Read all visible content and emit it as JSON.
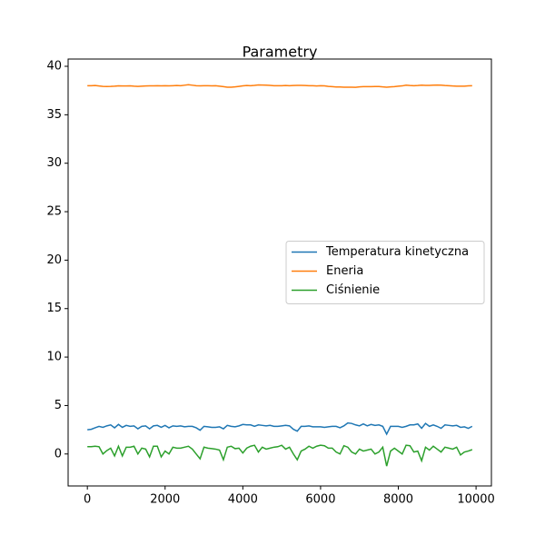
{
  "chart_data": {
    "type": "line",
    "title": "Parametry",
    "x": [
      0,
      100,
      200,
      300,
      400,
      500,
      600,
      700,
      800,
      900,
      1000,
      1100,
      1200,
      1300,
      1400,
      1500,
      1600,
      1700,
      1800,
      1900,
      2000,
      2100,
      2200,
      2300,
      2400,
      2500,
      2600,
      2700,
      2800,
      2900,
      3000,
      3100,
      3200,
      3300,
      3400,
      3500,
      3600,
      3700,
      3800,
      3900,
      4000,
      4100,
      4200,
      4300,
      4400,
      4500,
      4600,
      4700,
      4800,
      4900,
      5000,
      5100,
      5200,
      5300,
      5400,
      5500,
      5600,
      5700,
      5800,
      5900,
      6000,
      6100,
      6200,
      6300,
      6400,
      6500,
      6600,
      6700,
      6800,
      6900,
      7000,
      7100,
      7200,
      7300,
      7400,
      7500,
      7600,
      7700,
      7800,
      7900,
      8000,
      8100,
      8200,
      8300,
      8400,
      8500,
      8600,
      8700,
      8800,
      8900,
      9000,
      9100,
      9200,
      9300,
      9400,
      9500,
      9600,
      9700,
      9800,
      9900
    ],
    "series": [
      {
        "name": "Temperatura kinetyczna",
        "color": "#1f77b4",
        "values": [
          2.5,
          2.55,
          2.7,
          2.85,
          2.75,
          2.9,
          3.0,
          2.7,
          3.05,
          2.75,
          2.95,
          2.85,
          2.9,
          2.6,
          2.85,
          2.9,
          2.6,
          2.9,
          2.95,
          2.75,
          2.95,
          2.7,
          2.9,
          2.85,
          2.9,
          2.8,
          2.85,
          2.85,
          2.7,
          2.45,
          2.85,
          2.8,
          2.75,
          2.75,
          2.8,
          2.6,
          2.95,
          2.85,
          2.8,
          2.9,
          3.05,
          3.0,
          3.0,
          2.85,
          3.0,
          2.95,
          2.9,
          2.95,
          2.85,
          2.85,
          2.9,
          2.95,
          2.9,
          2.55,
          2.35,
          2.85,
          2.85,
          2.9,
          2.8,
          2.8,
          2.8,
          2.75,
          2.8,
          2.85,
          2.85,
          2.7,
          2.9,
          3.2,
          3.15,
          3.0,
          2.9,
          3.1,
          2.9,
          3.05,
          2.95,
          3.0,
          2.85,
          2.05,
          2.85,
          2.85,
          2.85,
          2.75,
          2.85,
          3.0,
          3.0,
          3.1,
          2.65,
          3.15,
          2.85,
          3.0,
          2.85,
          2.65,
          3.0,
          2.95,
          2.9,
          2.95,
          2.75,
          2.8,
          2.65,
          2.85
        ]
      },
      {
        "name": "Eneria",
        "color": "#ff7f0e",
        "values": [
          38.0,
          38.0,
          38.02,
          37.97,
          37.93,
          37.92,
          37.93,
          37.95,
          37.98,
          37.97,
          37.97,
          37.98,
          37.95,
          37.93,
          37.95,
          37.97,
          37.98,
          37.98,
          38.0,
          37.98,
          38.0,
          37.98,
          38.0,
          38.02,
          38.0,
          38.05,
          38.1,
          38.05,
          38.0,
          37.98,
          38.0,
          38.0,
          37.98,
          38.0,
          37.95,
          37.9,
          37.85,
          37.85,
          37.88,
          37.93,
          37.98,
          38.02,
          38.0,
          38.03,
          38.08,
          38.07,
          38.05,
          38.03,
          38.0,
          38.0,
          38.0,
          38.02,
          38.0,
          38.02,
          38.03,
          38.03,
          38.02,
          38.0,
          38.0,
          37.97,
          38.0,
          37.98,
          37.93,
          37.9,
          37.87,
          37.87,
          37.85,
          37.85,
          37.85,
          37.83,
          37.88,
          37.9,
          37.9,
          37.9,
          37.92,
          37.92,
          37.88,
          37.85,
          37.88,
          37.9,
          37.95,
          37.98,
          38.05,
          38.02,
          38.0,
          38.02,
          38.05,
          38.03,
          38.03,
          38.05,
          38.07,
          38.05,
          38.02,
          38.0,
          37.97,
          37.95,
          37.95,
          37.95,
          37.98,
          38.0
        ]
      },
      {
        "name": "Ciśnienie",
        "color": "#2ca02c",
        "values": [
          0.75,
          0.75,
          0.8,
          0.75,
          0.0,
          0.35,
          0.6,
          -0.2,
          0.8,
          -0.2,
          0.7,
          0.7,
          0.8,
          0.0,
          0.6,
          0.5,
          -0.3,
          0.8,
          0.8,
          -0.3,
          0.3,
          0.0,
          0.7,
          0.6,
          0.6,
          0.7,
          0.8,
          0.5,
          0.0,
          -0.5,
          0.7,
          0.6,
          0.55,
          0.5,
          0.4,
          -0.6,
          0.7,
          0.8,
          0.55,
          0.6,
          0.1,
          0.6,
          0.8,
          0.9,
          0.2,
          0.7,
          0.5,
          0.6,
          0.7,
          0.75,
          0.9,
          0.5,
          0.7,
          0.0,
          -0.6,
          0.3,
          0.5,
          0.8,
          0.6,
          0.8,
          0.9,
          0.85,
          0.6,
          0.6,
          0.2,
          0.0,
          0.85,
          0.7,
          0.2,
          0.0,
          0.5,
          0.3,
          0.4,
          0.5,
          0.0,
          0.2,
          0.7,
          -1.25,
          0.3,
          0.6,
          0.3,
          0.0,
          0.9,
          0.85,
          0.2,
          0.3,
          -0.7,
          0.7,
          0.4,
          0.8,
          0.5,
          0.2,
          0.7,
          0.6,
          0.5,
          0.7,
          -0.1,
          0.2,
          0.3,
          0.45
        ]
      }
    ],
    "xlim": [
      -495,
      10395
    ],
    "xticks": [
      0,
      2000,
      4000,
      6000,
      8000,
      10000
    ],
    "ylim": [
      -3.3,
      40.75
    ],
    "yticks": [
      0,
      5,
      10,
      15,
      20,
      25,
      30,
      35,
      40
    ],
    "legend": "center right"
  }
}
